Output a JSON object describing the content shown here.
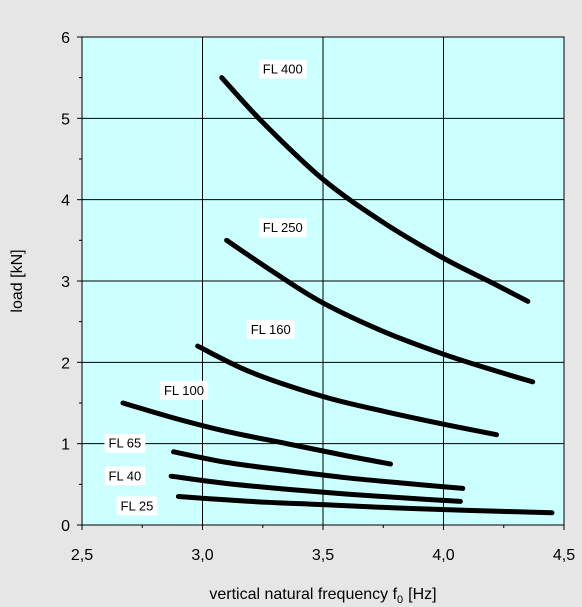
{
  "chart_data": {
    "type": "line",
    "title": "",
    "xlabel": "vertical natural frequency f",
    "xlabel_sub": "0",
    "xlabel_unit": "[Hz]",
    "ylabel": "load [kN]",
    "xlim": [
      2.5,
      4.5
    ],
    "ylim": [
      0,
      6
    ],
    "xticks": [
      2.5,
      3.0,
      3.5,
      4.0,
      4.5
    ],
    "xtick_labels": [
      "2,5",
      "3,0",
      "3,5",
      "4,0",
      "4,5"
    ],
    "yticks": [
      0,
      1,
      2,
      3,
      4,
      5,
      6
    ],
    "ytick_labels": [
      "0",
      "1",
      "2",
      "3",
      "4",
      "5",
      "6"
    ],
    "grid": true,
    "plot_background": "#ccffff",
    "line_color": "#000000",
    "series": [
      {
        "name": "FL 400",
        "x": [
          3.08,
          3.25,
          3.5,
          3.75,
          4.0,
          4.2,
          4.35
        ],
        "y": [
          5.5,
          4.95,
          4.25,
          3.72,
          3.28,
          2.98,
          2.75
        ]
      },
      {
        "name": "FL 250",
        "x": [
          3.1,
          3.3,
          3.5,
          3.75,
          4.0,
          4.2,
          4.37
        ],
        "y": [
          3.5,
          3.1,
          2.73,
          2.38,
          2.1,
          1.91,
          1.76
        ]
      },
      {
        "name": "FL 160",
        "x": [
          2.98,
          3.2,
          3.5,
          3.75,
          4.0,
          4.22
        ],
        "y": [
          2.2,
          1.88,
          1.58,
          1.4,
          1.24,
          1.11
        ]
      },
      {
        "name": "FL 100",
        "x": [
          2.67,
          2.9,
          3.1,
          3.35,
          3.6,
          3.78
        ],
        "y": [
          1.5,
          1.3,
          1.15,
          1.0,
          0.85,
          0.75
        ]
      },
      {
        "name": "FL 65",
        "x": [
          2.88,
          3.1,
          3.35,
          3.6,
          3.85,
          4.08
        ],
        "y": [
          0.9,
          0.77,
          0.67,
          0.58,
          0.51,
          0.45
        ]
      },
      {
        "name": "FL 40",
        "x": [
          2.87,
          3.1,
          3.35,
          3.6,
          3.85,
          4.07
        ],
        "y": [
          0.6,
          0.51,
          0.44,
          0.38,
          0.33,
          0.29
        ]
      },
      {
        "name": "FL 25",
        "x": [
          2.9,
          3.2,
          3.5,
          3.8,
          4.1,
          4.45
        ],
        "y": [
          0.35,
          0.29,
          0.25,
          0.21,
          0.18,
          0.15
        ]
      }
    ],
    "annotations": [
      {
        "text": "FL 400",
        "x": 3.25,
        "y": 5.55
      },
      {
        "text": "FL 250",
        "x": 3.25,
        "y": 3.6
      },
      {
        "text": "FL 160",
        "x": 3.2,
        "y": 2.35
      },
      {
        "text": "FL 100",
        "x": 2.84,
        "y": 1.6
      },
      {
        "text": "FL 65",
        "x": 2.61,
        "y": 0.95
      },
      {
        "text": "FL 40",
        "x": 2.61,
        "y": 0.55
      },
      {
        "text": "FL 25",
        "x": 2.66,
        "y": 0.18
      }
    ]
  }
}
